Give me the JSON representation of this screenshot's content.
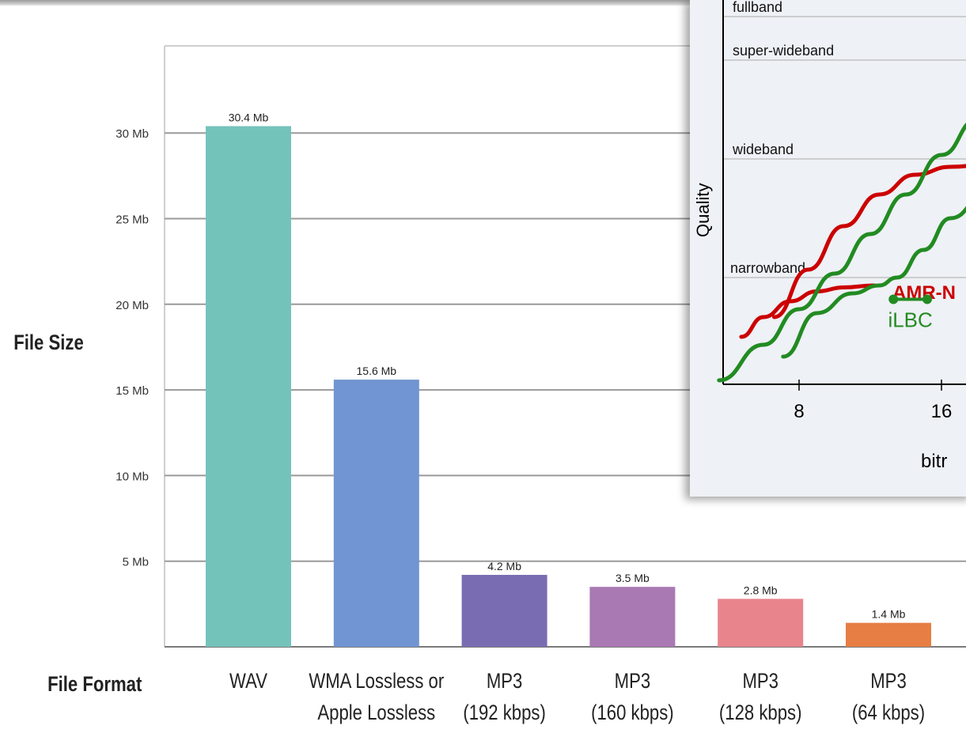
{
  "chart_data": [
    {
      "type": "bar",
      "ylabel": "File Size",
      "xlabel": "File Format",
      "yticks": [
        "5 Mb",
        "10 Mb",
        "15 Mb",
        "20 Mb",
        "25 Mb",
        "30 Mb"
      ],
      "ylim": [
        0,
        35
      ],
      "grid": true,
      "categories": [
        [
          "WAV"
        ],
        [
          "WMA Lossless or",
          "Apple Lossless"
        ],
        [
          "MP3",
          "(192 kbps)"
        ],
        [
          "MP3",
          "(160 kbps)"
        ],
        [
          "MP3",
          "(128 kbps)"
        ],
        [
          "MP3",
          "(64 kbps)"
        ]
      ],
      "values": [
        30.4,
        15.6,
        4.2,
        3.5,
        2.8,
        1.4
      ],
      "value_labels": [
        "30.4 Mb",
        "15.6 Mb",
        "4.2 Mb",
        "3.5 Mb",
        "2.8 Mb",
        "1.4 Mb"
      ],
      "colors": [
        "#74c3bb",
        "#7195d2",
        "#7a6cb2",
        "#a979b4",
        "#e8848c",
        "#e77e44"
      ]
    },
    {
      "type": "line",
      "ylabel": "Quality",
      "xlabel": "bitr",
      "xticks": [
        "8",
        "16"
      ],
      "xlim": [
        3.5,
        21
      ],
      "ylim": [
        0,
        100
      ],
      "bands": [
        "fullband",
        "super-wideband",
        "wideband",
        "narrowband"
      ],
      "band_levels": [
        93,
        82,
        57,
        27
      ],
      "series": [
        {
          "name": "AMR-N",
          "color": "#cc0000",
          "x": [
            4.75,
            6,
            7.5,
            9,
            10.5,
            12.2
          ],
          "y": [
            12,
            17,
            21,
            23.5,
            24.5,
            25
          ]
        },
        {
          "name": "",
          "color": "#cc0000",
          "x": [
            6.6,
            8.5,
            10.5,
            12.5,
            14.5,
            16.5,
            18.5,
            21
          ],
          "y": [
            17,
            29,
            40,
            48,
            53,
            55,
            55.5,
            55.5
          ]
        },
        {
          "name": "",
          "color": "#228b22",
          "x": [
            3.5,
            6,
            8,
            10,
            12,
            14,
            16,
            18,
            21
          ],
          "y": [
            1,
            10,
            19,
            28,
            38,
            48,
            58,
            67,
            74
          ]
        },
        {
          "name": "",
          "color": "#228b22",
          "x": [
            7.1,
            9,
            11,
            12.5,
            13.5,
            15,
            16.5,
            18.5,
            21
          ],
          "y": [
            7,
            18,
            23,
            25,
            27,
            34,
            42,
            48,
            53
          ]
        },
        {
          "name": "iLBC",
          "color": "#228b22",
          "kind": "segment",
          "x": [
            13.3,
            15.2
          ],
          "y": [
            21.5,
            21.5
          ]
        }
      ]
    }
  ]
}
